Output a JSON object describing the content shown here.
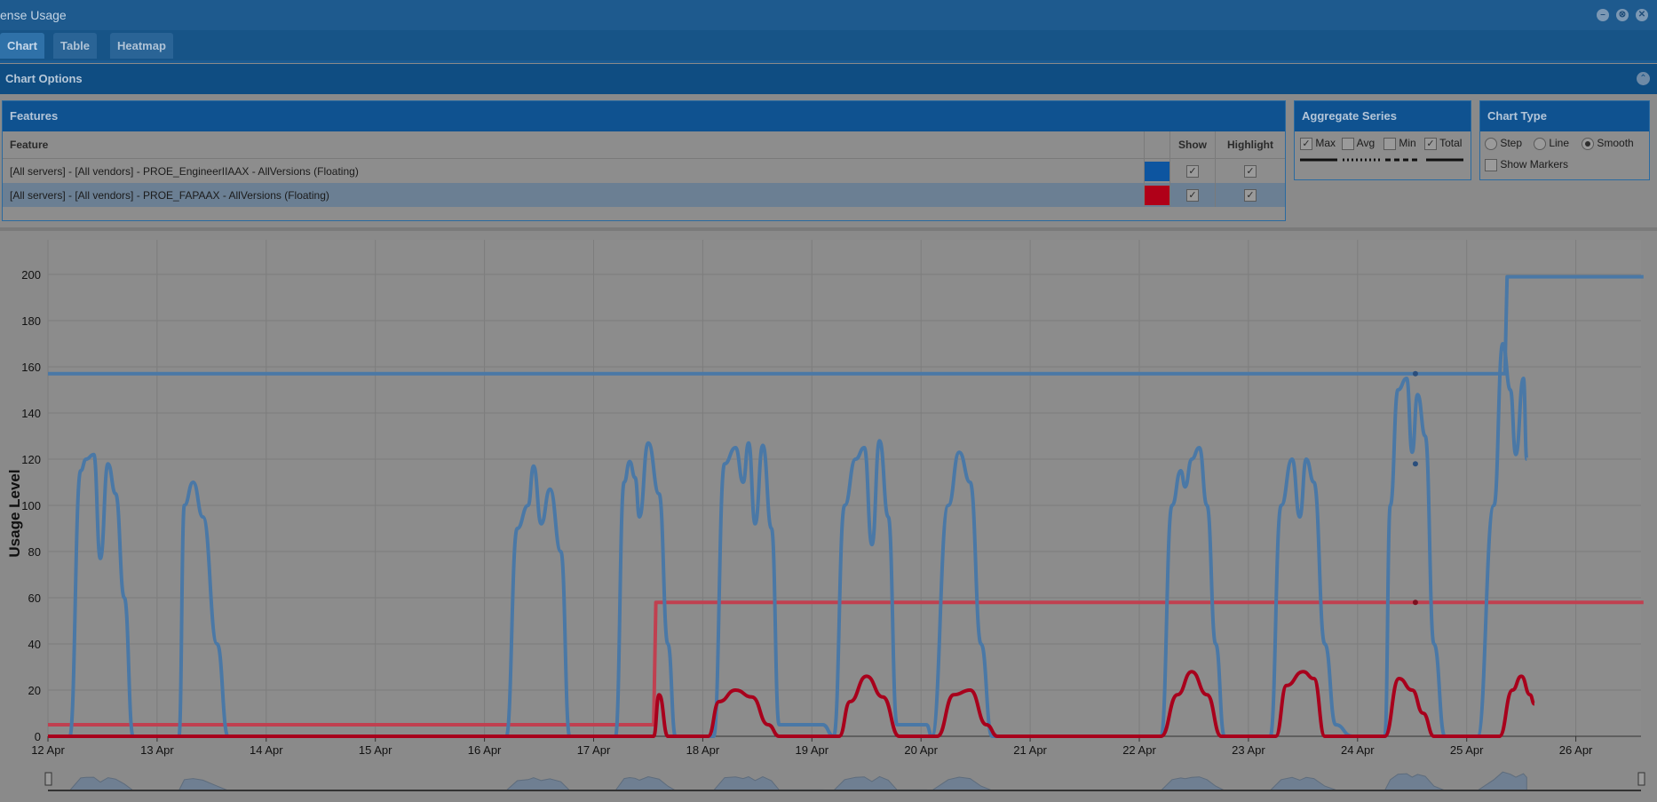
{
  "window": {
    "title": "ense Usage",
    "buttons": [
      "minimize",
      "restore",
      "close"
    ]
  },
  "tabs": [
    {
      "label": "Chart",
      "active": true
    },
    {
      "label": "Table",
      "active": false
    },
    {
      "label": "Heatmap",
      "active": false
    }
  ],
  "chart_options": {
    "label": "Chart Options"
  },
  "features": {
    "title": "Features",
    "columns": {
      "feature": "Feature",
      "color": "",
      "show": "Show",
      "highlight": "Highlight"
    },
    "rows": [
      {
        "name": "[All servers] - [All vendors] - PROE_EngineerIIAAX - AllVersions (Floating)",
        "color": "#0d55a0",
        "show": true,
        "highlight": true,
        "selected": false
      },
      {
        "name": "[All servers] - [All vendors] - PROE_FAPAAX - AllVersions (Floating)",
        "color": "#b00018",
        "show": true,
        "highlight": true,
        "selected": true
      }
    ]
  },
  "aggregate": {
    "title": "Aggregate Series",
    "options": [
      {
        "label": "Max",
        "checked": true
      },
      {
        "label": "Avg",
        "checked": false
      },
      {
        "label": "Min",
        "checked": false
      },
      {
        "label": "Total",
        "checked": true
      }
    ]
  },
  "chart_type": {
    "title": "Chart Type",
    "options": [
      {
        "label": "Step",
        "selected": false
      },
      {
        "label": "Line",
        "selected": false
      },
      {
        "label": "Smooth",
        "selected": true
      }
    ],
    "show_markers": {
      "label": "Show Markers",
      "checked": false
    }
  },
  "chart_data": {
    "type": "line",
    "ylabel": "Usage Level",
    "xlabel": "",
    "ylim": [
      0,
      215
    ],
    "y_ticks": [
      0,
      20,
      40,
      60,
      80,
      100,
      120,
      140,
      160,
      180,
      200
    ],
    "x_ticks": [
      "12 Apr",
      "13 Apr",
      "14 Apr",
      "15 Apr",
      "16 Apr",
      "17 Apr",
      "18 Apr",
      "19 Apr",
      "20 Apr",
      "21 Apr",
      "22 Apr",
      "23 Apr",
      "24 Apr",
      "25 Apr",
      "26 Apr"
    ],
    "x_unit": "days from 12 Apr",
    "grid": true,
    "series": [
      {
        "kind": "limit",
        "color": "#4a78a6",
        "points": [
          [
            0,
            157
          ],
          [
            13.35,
            157
          ],
          [
            13.37,
            199
          ],
          [
            14.62,
            199
          ]
        ]
      },
      {
        "kind": "limit",
        "color": "#c04050",
        "points": [
          [
            0,
            5
          ],
          [
            5.55,
            5
          ],
          [
            5.57,
            58
          ],
          [
            14.62,
            58
          ]
        ]
      },
      {
        "kind": "usage",
        "color": "#4a78a6",
        "points": [
          [
            0,
            0
          ],
          [
            0.2,
            0
          ],
          [
            0.3,
            115
          ],
          [
            0.35,
            120
          ],
          [
            0.42,
            122
          ],
          [
            0.48,
            77
          ],
          [
            0.55,
            118
          ],
          [
            0.62,
            105
          ],
          [
            0.7,
            60
          ],
          [
            0.78,
            0
          ],
          [
            1.2,
            0
          ],
          [
            1.25,
            100
          ],
          [
            1.33,
            110
          ],
          [
            1.42,
            95
          ],
          [
            1.55,
            40
          ],
          [
            1.65,
            0
          ],
          [
            3.85,
            0
          ],
          [
            4.0,
            0
          ],
          [
            4.2,
            0
          ],
          [
            4.3,
            90
          ],
          [
            4.4,
            100
          ],
          [
            4.45,
            117
          ],
          [
            4.52,
            92
          ],
          [
            4.6,
            107
          ],
          [
            4.7,
            80
          ],
          [
            4.78,
            0
          ],
          [
            5.2,
            0
          ],
          [
            5.28,
            110
          ],
          [
            5.33,
            119
          ],
          [
            5.38,
            112
          ],
          [
            5.42,
            95
          ],
          [
            5.5,
            127
          ],
          [
            5.6,
            105
          ],
          [
            5.68,
            40
          ],
          [
            5.75,
            0
          ],
          [
            6.1,
            0
          ],
          [
            6.2,
            118
          ],
          [
            6.3,
            125
          ],
          [
            6.37,
            110
          ],
          [
            6.42,
            127
          ],
          [
            6.48,
            92
          ],
          [
            6.55,
            126
          ],
          [
            6.63,
            90
          ],
          [
            6.7,
            5
          ],
          [
            7.1,
            5
          ],
          [
            7.2,
            0
          ],
          [
            7.3,
            100
          ],
          [
            7.4,
            120
          ],
          [
            7.48,
            125
          ],
          [
            7.55,
            83
          ],
          [
            7.62,
            128
          ],
          [
            7.7,
            95
          ],
          [
            7.78,
            5
          ],
          [
            8.05,
            5
          ],
          [
            8.1,
            0
          ],
          [
            8.25,
            100
          ],
          [
            8.35,
            123
          ],
          [
            8.45,
            110
          ],
          [
            8.55,
            40
          ],
          [
            8.65,
            0
          ],
          [
            10.1,
            0
          ],
          [
            10.2,
            0
          ],
          [
            10.3,
            100
          ],
          [
            10.38,
            115
          ],
          [
            10.42,
            108
          ],
          [
            10.48,
            120
          ],
          [
            10.55,
            125
          ],
          [
            10.62,
            100
          ],
          [
            10.7,
            40
          ],
          [
            10.78,
            0
          ],
          [
            11.2,
            0
          ],
          [
            11.3,
            100
          ],
          [
            11.4,
            120
          ],
          [
            11.47,
            95
          ],
          [
            11.53,
            120
          ],
          [
            11.6,
            110
          ],
          [
            11.7,
            40
          ],
          [
            11.8,
            5
          ],
          [
            11.95,
            0
          ],
          [
            12.25,
            0
          ],
          [
            12.3,
            100
          ],
          [
            12.37,
            150
          ],
          [
            12.45,
            155
          ],
          [
            12.5,
            123
          ],
          [
            12.55,
            148
          ],
          [
            12.62,
            130
          ],
          [
            12.7,
            40
          ],
          [
            12.8,
            0
          ],
          [
            13.0,
            0
          ],
          [
            13.1,
            0
          ],
          [
            13.25,
            100
          ],
          [
            13.33,
            170
          ],
          [
            13.4,
            150
          ],
          [
            13.45,
            122
          ],
          [
            13.52,
            155
          ],
          [
            13.55,
            120
          ]
        ]
      },
      {
        "kind": "usage",
        "color": "#a8001c",
        "points": [
          [
            0,
            0
          ],
          [
            5.55,
            0
          ],
          [
            5.6,
            18
          ],
          [
            5.68,
            0
          ],
          [
            6.05,
            0
          ],
          [
            6.15,
            15
          ],
          [
            6.3,
            20
          ],
          [
            6.45,
            17
          ],
          [
            6.6,
            5
          ],
          [
            6.7,
            0
          ],
          [
            7.25,
            0
          ],
          [
            7.35,
            15
          ],
          [
            7.5,
            26
          ],
          [
            7.65,
            17
          ],
          [
            7.8,
            0
          ],
          [
            8.15,
            0
          ],
          [
            8.3,
            18
          ],
          [
            8.45,
            20
          ],
          [
            8.6,
            5
          ],
          [
            8.7,
            0
          ],
          [
            10.2,
            0
          ],
          [
            10.35,
            18
          ],
          [
            10.48,
            28
          ],
          [
            10.62,
            18
          ],
          [
            10.75,
            0
          ],
          [
            11.25,
            0
          ],
          [
            11.35,
            22
          ],
          [
            11.5,
            28
          ],
          [
            11.6,
            25
          ],
          [
            11.7,
            0
          ],
          [
            12.25,
            0
          ],
          [
            12.38,
            25
          ],
          [
            12.5,
            20
          ],
          [
            12.6,
            10
          ],
          [
            12.7,
            0
          ],
          [
            13.3,
            0
          ],
          [
            13.42,
            20
          ],
          [
            13.5,
            26
          ],
          [
            13.58,
            18
          ],
          [
            13.62,
            14
          ]
        ]
      }
    ],
    "markers": [
      {
        "x": 12.53,
        "y": 157,
        "color": "#2a4e7c"
      },
      {
        "x": 12.53,
        "y": 118,
        "color": "#2a4e7c"
      },
      {
        "x": 12.53,
        "y": 58,
        "color": "#7c1020"
      }
    ],
    "navigator": {
      "series": "overview"
    }
  }
}
